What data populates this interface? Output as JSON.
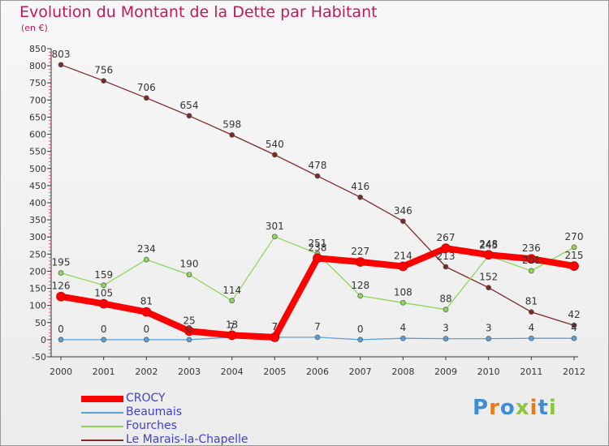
{
  "header": {
    "title": "Evolution du Montant de la Dette par Habitant",
    "subtitle": "(en €)"
  },
  "logo": {
    "text": "Proxiti"
  },
  "chart_data": {
    "type": "line",
    "title": "Evolution du Montant de la Dette par Habitant",
    "ylabel": "(en €)",
    "x": [
      2000,
      2001,
      2002,
      2003,
      2004,
      2005,
      2006,
      2007,
      2008,
      2009,
      2010,
      2011,
      2012
    ],
    "ylim": [
      -50,
      850
    ],
    "yticks": [
      -50,
      0,
      50,
      100,
      150,
      200,
      250,
      300,
      350,
      400,
      450,
      500,
      550,
      600,
      650,
      700,
      750,
      800,
      850
    ],
    "grid": false,
    "legend_position": "bottom-left",
    "series": [
      {
        "name": "CROCY",
        "color": "#ff0000",
        "values": [
          126,
          105,
          81,
          25,
          13,
          7,
          238,
          227,
          214,
          267,
          248,
          236,
          215
        ],
        "labels": [
          "126",
          "105",
          "81",
          "25",
          "13",
          "7",
          "238",
          "227",
          "214",
          "267",
          "248",
          "236",
          "215"
        ]
      },
      {
        "name": "Beaumais",
        "color": "#5aa0d8",
        "values": [
          0,
          0,
          0,
          0,
          7,
          7,
          7,
          0,
          4,
          3,
          3,
          4,
          4
        ],
        "labels": [
          "0",
          "0",
          "0",
          "0",
          "7",
          "7",
          "7",
          "0",
          "4",
          "3",
          "3",
          "4",
          "4"
        ]
      },
      {
        "name": "Fourches",
        "color": "#8fd65a",
        "values": [
          195,
          159,
          234,
          190,
          114,
          301,
          251,
          128,
          108,
          88,
          245,
          201,
          270
        ],
        "labels": [
          "195",
          "159",
          "234",
          "190",
          "114",
          "301",
          "251",
          "128",
          "108",
          "88",
          "245",
          "201",
          "270"
        ]
      },
      {
        "name": "Le Marais-la-Chapelle",
        "color": "#7a2a2a",
        "values": [
          803,
          756,
          706,
          654,
          598,
          540,
          478,
          416,
          346,
          213,
          152,
          81,
          42
        ],
        "labels": [
          "803",
          "756",
          "706",
          "654",
          "598",
          "540",
          "478",
          "416",
          "346",
          "213",
          "152",
          "81",
          "42"
        ]
      }
    ]
  }
}
